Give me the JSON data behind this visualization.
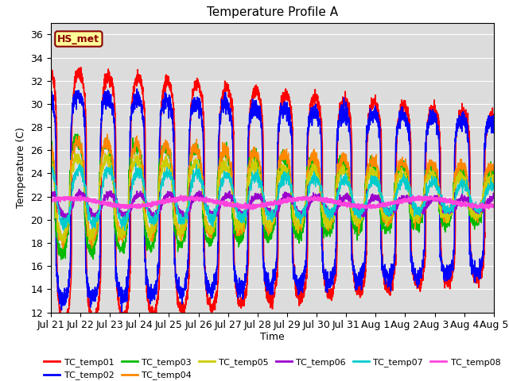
{
  "title": "Temperature Profile A",
  "xlabel": "Time",
  "ylabel": "Temperature (C)",
  "ylim": [
    12,
    37
  ],
  "yticks": [
    12,
    14,
    16,
    18,
    20,
    22,
    24,
    26,
    28,
    30,
    32,
    34,
    36
  ],
  "bg_color": "#dcdcdc",
  "annotation_text": "HS_met",
  "annotation_color": "#8b0000",
  "annotation_bg": "#ffff99",
  "legend_entries": [
    "TC_temp01",
    "TC_temp02",
    "TC_temp03",
    "TC_temp04",
    "TC_temp05",
    "TC_temp06",
    "TC_temp07",
    "TC_temp08"
  ],
  "line_colors": [
    "#ff0000",
    "#0000ff",
    "#00bb00",
    "#ff8800",
    "#cccc00",
    "#9900cc",
    "#00cccc",
    "#ff44dd"
  ],
  "xtick_labels": [
    "Jul 21",
    "Jul 22",
    "Jul 23",
    "Jul 24",
    "Jul 25",
    "Jul 26",
    "Jul 27",
    "Jul 28",
    "Jul 29",
    "Jul 30",
    "Jul 31",
    "Aug 1",
    "Aug 2",
    "Aug 3",
    "Aug 4",
    "Aug 5"
  ],
  "n_points": 2880,
  "seed": 7
}
